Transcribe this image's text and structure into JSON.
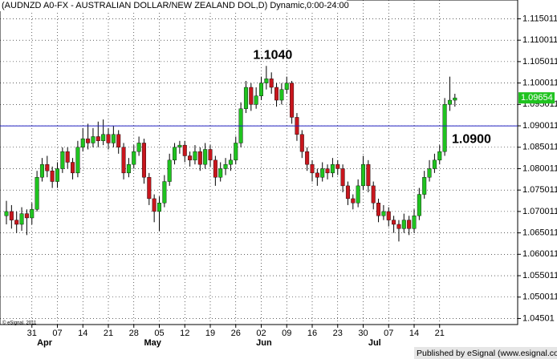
{
  "chart_data": {
    "type": "candlestick",
    "title": "(AUDNZD A0-FX - AUSTRALIAN DOLLAR/NEW ZEALAND DOL,D) Dynamic,0:00-24:00",
    "footer": "Published by eSignal (www.esignal.com)",
    "copyright": "© eSignal, 2011",
    "categories": [
      null,
      null,
      null,
      null,
      null,
      "31",
      null,
      null,
      null,
      null,
      "07",
      null,
      null,
      null,
      null,
      "14",
      null,
      null,
      null,
      null,
      "21",
      null,
      null,
      null,
      null,
      "28",
      null,
      null,
      null,
      null,
      "05",
      null,
      null,
      null,
      null,
      "12",
      null,
      null,
      null,
      null,
      "19",
      null,
      null,
      null,
      null,
      "26",
      null,
      null,
      null,
      null,
      "02",
      null,
      null,
      null,
      null,
      "09",
      null,
      null,
      null,
      null,
      "16",
      null,
      null,
      null,
      null,
      "23",
      null,
      null,
      null,
      null,
      "30",
      null,
      null,
      null,
      null,
      "07",
      null,
      null,
      null,
      null,
      "14",
      null,
      null,
      null,
      null,
      "21",
      null,
      null,
      null
    ],
    "months": [
      null,
      null,
      null,
      null,
      null,
      null,
      "Apr",
      null,
      null,
      null,
      null,
      null,
      null,
      null,
      null,
      null,
      null,
      null,
      null,
      null,
      null,
      null,
      null,
      null,
      null,
      null,
      null,
      "May",
      null,
      null,
      null,
      null,
      null,
      null,
      null,
      null,
      null,
      null,
      null,
      null,
      null,
      null,
      null,
      null,
      null,
      null,
      null,
      null,
      null,
      "Jun",
      null,
      null,
      null,
      null,
      null,
      null,
      null,
      null,
      null,
      null,
      null,
      null,
      null,
      null,
      null,
      null,
      null,
      null,
      null,
      null,
      null,
      "Jul",
      null,
      null,
      null,
      null,
      null,
      null,
      null,
      null,
      null,
      null,
      null,
      null,
      null,
      null,
      null,
      null,
      null
    ],
    "open": [
      1.069,
      1.07,
      1.068,
      1.067,
      1.0695,
      1.0685,
      1.0705,
      1.078,
      1.081,
      1.0795,
      1.077,
      1.08,
      1.084,
      1.0815,
      1.079,
      1.085,
      1.087,
      1.086,
      1.0875,
      1.0865,
      1.088,
      1.086,
      1.088,
      1.085,
      1.079,
      1.081,
      1.084,
      1.086,
      1.078,
      1.073,
      1.07,
      1.072,
      1.077,
      1.082,
      1.085,
      1.0855,
      1.083,
      1.082,
      1.084,
      1.081,
      1.0845,
      1.082,
      1.078,
      1.08,
      1.081,
      1.082,
      1.086,
      1.094,
      1.099,
      1.095,
      1.097,
      1.1,
      1.101,
      1.099,
      1.096,
      1.0985,
      1.1,
      1.092,
      1.088,
      1.084,
      1.081,
      1.079,
      1.078,
      1.08,
      1.079,
      1.081,
      1.08,
      1.076,
      1.073,
      1.072,
      1.076,
      1.081,
      1.076,
      1.072,
      1.069,
      1.07,
      1.068,
      1.067,
      1.066,
      1.068,
      1.066,
      1.069,
      1.074,
      1.078,
      1.08,
      1.082,
      1.084,
      1.095,
      1.096
    ],
    "high": [
      1.0725,
      1.0715,
      1.07,
      1.071,
      1.0705,
      1.072,
      1.0795,
      1.0825,
      1.083,
      1.0805,
      1.0815,
      1.085,
      1.085,
      1.0825,
      1.0865,
      1.0895,
      1.0905,
      1.0895,
      1.091,
      1.0915,
      1.0895,
      1.09,
      1.089,
      1.086,
      1.0825,
      1.0855,
      1.0875,
      1.087,
      1.079,
      1.074,
      1.0735,
      1.0785,
      1.0835,
      1.086,
      1.0865,
      1.0865,
      1.084,
      1.0855,
      1.085,
      1.086,
      1.0855,
      1.083,
      1.0815,
      1.0825,
      1.0835,
      1.0875,
      1.0955,
      1.1005,
      1.1,
      1.099,
      1.1015,
      1.104,
      1.1025,
      1.1,
      1.1,
      1.1015,
      1.1005,
      1.093,
      1.089,
      1.085,
      1.082,
      1.08,
      1.0815,
      1.081,
      1.0825,
      1.082,
      1.081,
      1.077,
      1.074,
      1.0775,
      1.083,
      1.082,
      1.077,
      1.073,
      1.0715,
      1.071,
      1.069,
      1.068,
      1.0695,
      1.069,
      1.0705,
      1.0755,
      1.0795,
      1.082,
      1.0835,
      1.0855,
      1.0965,
      1.1015,
      1.0975
    ],
    "low": [
      1.067,
      1.066,
      1.065,
      1.0655,
      1.0645,
      1.067,
      1.07,
      1.077,
      1.078,
      1.0755,
      1.0755,
      1.079,
      1.08,
      1.0775,
      1.078,
      1.084,
      1.0845,
      1.085,
      1.085,
      1.0855,
      1.0845,
      1.085,
      1.0835,
      1.0775,
      1.078,
      1.08,
      1.083,
      1.0765,
      1.0715,
      1.0675,
      1.0655,
      1.071,
      1.076,
      1.081,
      1.0835,
      1.0815,
      1.0805,
      1.081,
      1.0795,
      1.08,
      1.0805,
      1.076,
      1.077,
      1.0785,
      1.0795,
      1.081,
      1.085,
      1.093,
      1.0935,
      1.094,
      1.096,
      1.0985,
      1.0975,
      1.0945,
      1.095,
      1.0975,
      1.0905,
      1.0865,
      1.0825,
      1.0795,
      1.077,
      1.076,
      1.077,
      1.0775,
      1.078,
      1.0785,
      1.0745,
      1.0715,
      1.0705,
      1.071,
      1.075,
      1.0745,
      1.0705,
      1.0675,
      1.068,
      1.0665,
      1.065,
      1.063,
      1.065,
      1.0645,
      1.065,
      1.068,
      1.073,
      1.077,
      1.079,
      1.081,
      1.083,
      1.0935,
      1.0945
    ],
    "close": [
      1.07,
      1.068,
      1.067,
      1.0695,
      1.0685,
      1.0705,
      1.078,
      1.081,
      1.0795,
      1.077,
      1.08,
      1.084,
      1.0815,
      1.079,
      1.085,
      1.087,
      1.086,
      1.0875,
      1.0865,
      1.088,
      1.086,
      1.088,
      1.085,
      1.079,
      1.081,
      1.084,
      1.086,
      1.078,
      1.073,
      1.07,
      1.072,
      1.077,
      1.082,
      1.085,
      1.0855,
      1.083,
      1.082,
      1.084,
      1.081,
      1.0845,
      1.082,
      1.078,
      1.08,
      1.081,
      1.082,
      1.086,
      1.094,
      1.099,
      1.095,
      1.097,
      1.1,
      1.101,
      1.099,
      1.096,
      1.0985,
      1.1,
      1.092,
      1.088,
      1.084,
      1.081,
      1.079,
      1.078,
      1.08,
      1.079,
      1.081,
      1.08,
      1.076,
      1.073,
      1.072,
      1.076,
      1.081,
      1.076,
      1.072,
      1.069,
      1.07,
      1.068,
      1.067,
      1.066,
      1.068,
      1.066,
      1.069,
      1.074,
      1.078,
      1.08,
      1.082,
      1.084,
      1.095,
      1.096,
      1.09654
    ],
    "up_color": "#1fc31f",
    "down_color": "#c8161d",
    "hline": {
      "value": 1.09,
      "label": "1.0900",
      "color": "#2020c0"
    },
    "annotation": {
      "value": 1.104,
      "label": "1.1040",
      "index": 51
    },
    "ylim": [
      1.0436,
      1.1194
    ],
    "yticks": [
      1.04501,
      1.050011,
      1.055011,
      1.060011,
      1.065011,
      1.070011,
      1.075011,
      1.080011,
      1.085011,
      1.090011,
      1.095011,
      1.100011,
      1.105011,
      1.110011,
      1.115011
    ],
    "grid": true
  }
}
